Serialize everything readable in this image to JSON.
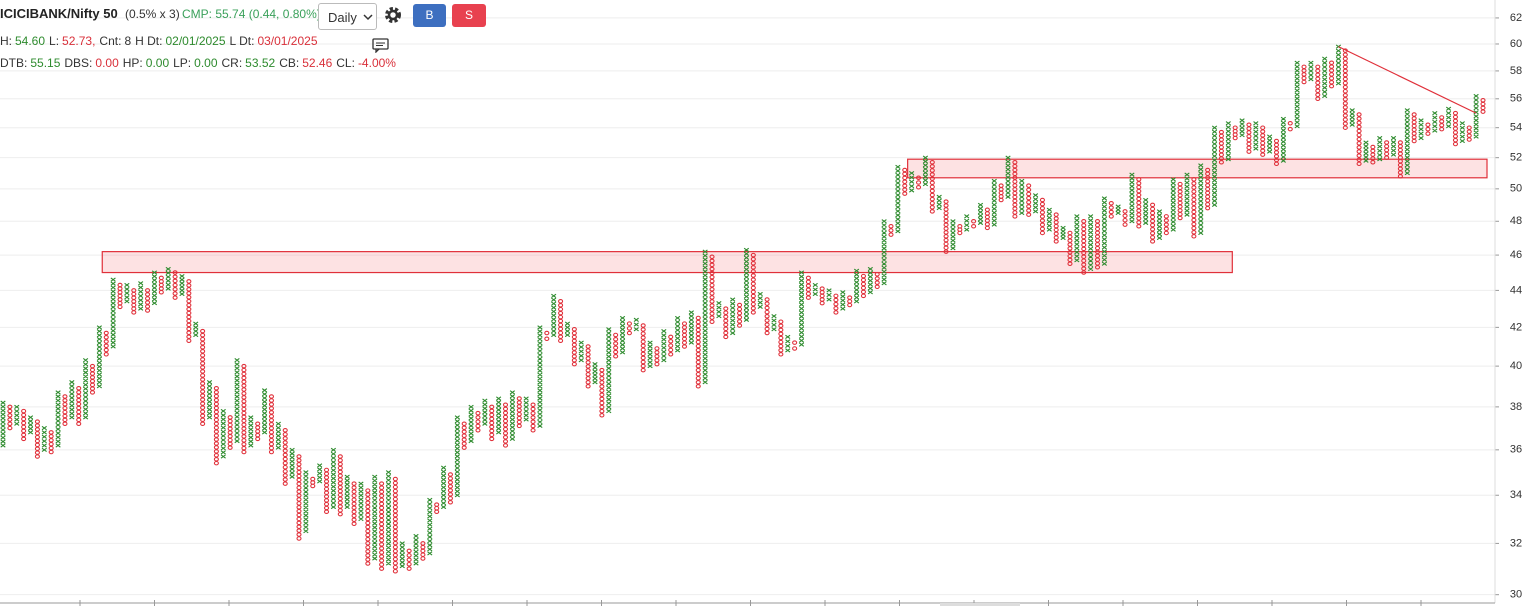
{
  "header": {
    "symbol": "ICICIBANK/Nifty 50",
    "box_setting": "(0.5% x 3)",
    "cmp": "CMP: 55.74 (0.44, 0.80%)",
    "interval": "Daily",
    "buy": "B",
    "sell": "S"
  },
  "info_lines": [
    [
      {
        "label": "H:",
        "value": "54.60",
        "color": "#2e8b2e"
      },
      {
        "label": "L:",
        "value": "52.73,",
        "color": "#d9303a"
      },
      {
        "label": "Cnt:",
        "value": "8",
        "color": "#333333"
      },
      {
        "label": "H Dt:",
        "value": "02/01/2025",
        "color": "#2e8b2e"
      },
      {
        "label": "L Dt:",
        "value": "03/01/2025",
        "color": "#d9303a"
      }
    ],
    [
      {
        "label": "DTB:",
        "value": "55.15",
        "color": "#2e8b2e"
      },
      {
        "label": "DBS:",
        "value": "0.00",
        "color": "#d9303a"
      },
      {
        "label": "HP:",
        "value": "0.00",
        "color": "#2e8b2e"
      },
      {
        "label": "LP:",
        "value": "0.00",
        "color": "#2e8b2e"
      },
      {
        "label": "CR:",
        "value": "53.52",
        "color": "#2e8b2e"
      },
      {
        "label": "CB:",
        "value": "52.46",
        "color": "#d9303a"
      },
      {
        "label": "CL:",
        "value": "-4.00%",
        "color": "#d9303a"
      }
    ]
  ],
  "chart_data": {
    "type": "point_and_figure",
    "box_percent": 0.5,
    "log_scale": true,
    "grid": true,
    "ylim": [
      29.8,
      63.2
    ],
    "yticks": [
      30,
      32,
      34,
      36,
      38,
      40,
      42,
      44,
      46,
      48,
      50,
      52,
      54,
      56,
      58,
      60,
      62
    ],
    "x_color": "#2e8b2e",
    "o_color": "#e0303a",
    "columns": [
      [
        "X",
        36.2,
        38.2
      ],
      [
        "O",
        37,
        38
      ],
      [
        "X",
        37.2,
        38
      ],
      [
        "O",
        36.5,
        37.8
      ],
      [
        "X",
        36.8,
        37.5
      ],
      [
        "O",
        35.7,
        37.3
      ],
      [
        "X",
        36,
        37
      ],
      [
        "O",
        35.9,
        36.8
      ],
      [
        "X",
        36.2,
        38.7
      ],
      [
        "O",
        37.2,
        38.5
      ],
      [
        "X",
        37.5,
        39.2
      ],
      [
        "O",
        37.2,
        38.9
      ],
      [
        "X",
        37.5,
        40.3
      ],
      [
        "O",
        38.7,
        40
      ],
      [
        "X",
        39,
        42
      ],
      [
        "O",
        40.6,
        41.7
      ],
      [
        "X",
        41,
        44.6
      ],
      [
        "O",
        43.1,
        44.3
      ],
      [
        "X",
        43.4,
        44.3
      ],
      [
        "O",
        42.8,
        44
      ],
      [
        "X",
        43,
        44.4
      ],
      [
        "O",
        42.9,
        44
      ],
      [
        "X",
        43.3,
        45
      ],
      [
        "O",
        43.9,
        44.7
      ],
      [
        "X",
        44.1,
        45.2
      ],
      [
        "O",
        43.6,
        45
      ],
      [
        "X",
        43.8,
        44.8
      ],
      [
        "O",
        41.3,
        44.5
      ],
      [
        "X",
        41.6,
        42.2
      ],
      [
        "O",
        37.2,
        41.8
      ],
      [
        "X",
        37.5,
        39.2
      ],
      [
        "O",
        35.4,
        38.9
      ],
      [
        "X",
        35.7,
        37.8
      ],
      [
        "O",
        36.1,
        37.5
      ],
      [
        "X",
        36.4,
        40.3
      ],
      [
        "O",
        35.9,
        40
      ],
      [
        "X",
        36.2,
        37.5
      ],
      [
        "O",
        36.5,
        37.2
      ],
      [
        "X",
        36.8,
        38.8
      ],
      [
        "O",
        35.9,
        38.5
      ],
      [
        "X",
        36.1,
        37.2
      ],
      [
        "O",
        34.5,
        36.9
      ],
      [
        "X",
        34.8,
        36
      ],
      [
        "O",
        32.2,
        35.7
      ],
      [
        "X",
        32.5,
        35
      ],
      [
        "O",
        34.4,
        34.7
      ],
      [
        "X",
        34.6,
        35.3
      ],
      [
        "O",
        33.3,
        35.1
      ],
      [
        "X",
        33.5,
        36
      ],
      [
        "O",
        33.2,
        35.7
      ],
      [
        "X",
        33.5,
        34.8
      ],
      [
        "O",
        32.8,
        34.5
      ],
      [
        "X",
        33,
        34.5
      ],
      [
        "O",
        31.2,
        34.2
      ],
      [
        "X",
        31.4,
        34.8
      ],
      [
        "O",
        31,
        34.5
      ],
      [
        "X",
        31.2,
        35
      ],
      [
        "O",
        30.9,
        34.7
      ],
      [
        "X",
        31.1,
        32
      ],
      [
        "O",
        31,
        31.7
      ],
      [
        "X",
        31.2,
        32.3
      ],
      [
        "O",
        31.4,
        32
      ],
      [
        "X",
        31.6,
        33.8
      ],
      [
        "O",
        33.3,
        33.6
      ],
      [
        "X",
        33.5,
        35.2
      ],
      [
        "O",
        33.7,
        34.9
      ],
      [
        "X",
        34,
        37.5
      ],
      [
        "O",
        36.1,
        37.2
      ],
      [
        "X",
        36.4,
        38
      ],
      [
        "O",
        36.9,
        37.7
      ],
      [
        "X",
        37.2,
        38.3
      ],
      [
        "O",
        36.5,
        38
      ],
      [
        "X",
        36.8,
        38.4
      ],
      [
        "O",
        36.2,
        38.1
      ],
      [
        "X",
        36.5,
        38.7
      ],
      [
        "O",
        37.1,
        38.4
      ],
      [
        "X",
        37.4,
        38.4
      ],
      [
        "O",
        36.9,
        38.1
      ],
      [
        "X",
        37.1,
        42
      ],
      [
        "O",
        41.4,
        41.7
      ],
      [
        "X",
        41.6,
        43.7
      ],
      [
        "O",
        41.3,
        43.4
      ],
      [
        "X",
        41.6,
        42.2
      ],
      [
        "O",
        40.1,
        41.9
      ],
      [
        "X",
        40.3,
        41.2
      ],
      [
        "O",
        39,
        41
      ],
      [
        "X",
        39.2,
        40.1
      ],
      [
        "O",
        37.6,
        39.8
      ],
      [
        "X",
        37.8,
        41.9
      ],
      [
        "O",
        40.5,
        41.6
      ],
      [
        "X",
        40.7,
        42.5
      ],
      [
        "O",
        41.7,
        42.2
      ],
      [
        "X",
        41.9,
        42.4
      ],
      [
        "O",
        39.8,
        42.1
      ],
      [
        "X",
        40,
        41.2
      ],
      [
        "O",
        40.1,
        40.9
      ],
      [
        "X",
        40.3,
        41.8
      ],
      [
        "O",
        40.6,
        41.5
      ],
      [
        "X",
        40.8,
        42.5
      ],
      [
        "O",
        41,
        42.2
      ],
      [
        "X",
        41.2,
        42.8
      ],
      [
        "O",
        39,
        42.5
      ],
      [
        "X",
        39.2,
        46.2
      ],
      [
        "O",
        42.3,
        45.9
      ],
      [
        "X",
        42.6,
        43.3
      ],
      [
        "O",
        41.5,
        43
      ],
      [
        "X",
        41.7,
        43.5
      ],
      [
        "O",
        42.1,
        43.2
      ],
      [
        "X",
        42.4,
        46.3
      ],
      [
        "O",
        42.8,
        46
      ],
      [
        "X",
        43.1,
        43.8
      ],
      [
        "O",
        41.7,
        43.5
      ],
      [
        "X",
        41.9,
        42.6
      ],
      [
        "O",
        40.6,
        42.3
      ],
      [
        "X",
        40.8,
        41.5
      ],
      [
        "O",
        40.9,
        41.2
      ],
      [
        "X",
        41.1,
        45
      ],
      [
        "O",
        43.6,
        44.7
      ],
      [
        "X",
        43.8,
        44.3
      ],
      [
        "O",
        43.3,
        44.1
      ],
      [
        "X",
        43.5,
        44
      ],
      [
        "O",
        42.8,
        43.7
      ],
      [
        "X",
        43,
        43.9
      ],
      [
        "O",
        43.2,
        43.6
      ],
      [
        "X",
        43.4,
        45.1
      ],
      [
        "O",
        43.7,
        44.8
      ],
      [
        "X",
        43.9,
        45.2
      ],
      [
        "O",
        44.2,
        44.9
      ],
      [
        "X",
        44.4,
        48
      ],
      [
        "O",
        47.2,
        47.7
      ],
      [
        "X",
        47.4,
        51.4
      ],
      [
        "O",
        49.7,
        51.2
      ],
      [
        "X",
        49.9,
        51
      ],
      [
        "O",
        50.1,
        50.7
      ],
      [
        "X",
        50.3,
        52
      ],
      [
        "O",
        48.6,
        51.7
      ],
      [
        "X",
        48.8,
        49.5
      ],
      [
        "O",
        46.2,
        49.2
      ],
      [
        "X",
        46.4,
        48
      ],
      [
        "O",
        47.3,
        47.7
      ],
      [
        "X",
        47.5,
        48.3
      ],
      [
        "O",
        47.7,
        48
      ],
      [
        "X",
        47.9,
        49
      ],
      [
        "O",
        47.6,
        48.7
      ],
      [
        "X",
        47.8,
        50.5
      ],
      [
        "O",
        49.3,
        50.2
      ],
      [
        "X",
        49.5,
        52
      ],
      [
        "O",
        48.3,
        51.7
      ],
      [
        "X",
        48.5,
        50.5
      ],
      [
        "O",
        48.4,
        50.2
      ],
      [
        "X",
        48.6,
        49.6
      ],
      [
        "O",
        47.3,
        49.3
      ],
      [
        "X",
        47.5,
        48.7
      ],
      [
        "O",
        46.8,
        48.4
      ],
      [
        "X",
        47,
        47.6
      ],
      [
        "O",
        45.5,
        47.3
      ],
      [
        "X",
        45.7,
        48.3
      ],
      [
        "O",
        45,
        48
      ],
      [
        "X",
        45.2,
        48.3
      ],
      [
        "O",
        45.3,
        48
      ],
      [
        "X",
        45.5,
        49.4
      ],
      [
        "O",
        48.3,
        49.1
      ],
      [
        "X",
        48.5,
        48.9
      ],
      [
        "O",
        47.8,
        48.6
      ],
      [
        "X",
        48,
        50.9
      ],
      [
        "O",
        47.7,
        50.6
      ],
      [
        "X",
        47.9,
        49.3
      ],
      [
        "O",
        46.8,
        49
      ],
      [
        "X",
        47,
        48.6
      ],
      [
        "O",
        47.3,
        48.3
      ],
      [
        "X",
        47.5,
        50.6
      ],
      [
        "O",
        48.2,
        50.3
      ],
      [
        "X",
        48.4,
        50.9
      ],
      [
        "O",
        47.1,
        50.6
      ],
      [
        "X",
        47.3,
        51.5
      ],
      [
        "O",
        48.8,
        51.2
      ],
      [
        "X",
        49,
        54
      ],
      [
        "O",
        51.7,
        53.7
      ],
      [
        "X",
        51.9,
        54.3
      ],
      [
        "O",
        53.3,
        54
      ],
      [
        "X",
        53.5,
        54.5
      ],
      [
        "O",
        52.4,
        54.2
      ],
      [
        "X",
        52.6,
        54.3
      ],
      [
        "O",
        52.2,
        54
      ],
      [
        "X",
        52.4,
        53.4
      ],
      [
        "O",
        51.6,
        53.1
      ],
      [
        "X",
        51.8,
        54.6
      ],
      [
        "O",
        53.9,
        54.3
      ],
      [
        "X",
        54.1,
        58.6
      ],
      [
        "O",
        57.2,
        58.3
      ],
      [
        "X",
        57.4,
        58.6
      ],
      [
        "O",
        56,
        58.3
      ],
      [
        "X",
        56.2,
        58.9
      ],
      [
        "O",
        56.9,
        58.6
      ],
      [
        "X",
        57.1,
        59.8
      ],
      [
        "O",
        54,
        59.5
      ],
      [
        "X",
        54.2,
        55.2
      ],
      [
        "O",
        51.6,
        54.9
      ],
      [
        "X",
        51.8,
        53
      ],
      [
        "O",
        51.7,
        52.7
      ],
      [
        "X",
        51.9,
        53.3
      ],
      [
        "O",
        52,
        53
      ],
      [
        "X",
        52.2,
        53.3
      ],
      [
        "O",
        50.8,
        53
      ],
      [
        "X",
        51,
        55.2
      ],
      [
        "O",
        53.1,
        54.9
      ],
      [
        "X",
        53.3,
        54.5
      ],
      [
        "O",
        53.6,
        54.2
      ],
      [
        "X",
        53.8,
        55
      ],
      [
        "O",
        53.9,
        54.7
      ],
      [
        "X",
        54.1,
        55.3
      ],
      [
        "O",
        52.9,
        55
      ],
      [
        "X",
        53.1,
        54.3
      ],
      [
        "O",
        53.2,
        54
      ],
      [
        "X",
        53.4,
        56.2
      ],
      [
        "O",
        55.1,
        55.9
      ]
    ],
    "zones": [
      {
        "from_column": 15,
        "to_column": 178,
        "low": 45,
        "high": 46.2
      },
      {
        "from_column": 132,
        "to_column": 215,
        "low": 50.7,
        "high": 51.9
      }
    ],
    "trendline": {
      "from_column": 194,
      "from_value": 59.8,
      "to_column": 214,
      "to_value": 55,
      "color": "#e0303a"
    }
  }
}
